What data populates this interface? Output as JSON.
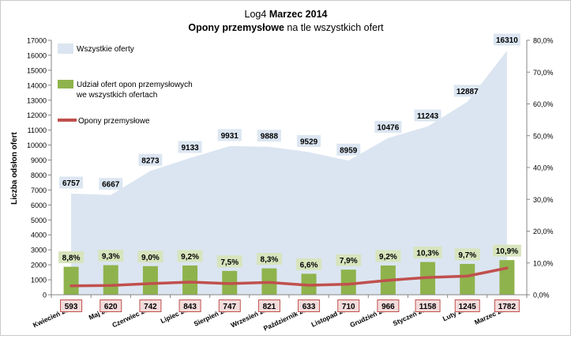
{
  "chart_data": {
    "type": "area",
    "title": {
      "prefix": "Log4",
      "period": "Marzec 2014",
      "subtitle_bold": "Opony przemysłowe",
      "subtitle_rest": "na tle wszystkich ofert"
    },
    "ylabel": "Liczba odsłon ofert",
    "ylim": [
      0,
      17000
    ],
    "y2lim": [
      0,
      80
    ],
    "y_ticks": [
      "0",
      "1000",
      "2000",
      "3000",
      "4000",
      "5000",
      "6000",
      "7000",
      "8000",
      "9000",
      "10000",
      "11000",
      "12000",
      "13000",
      "14000",
      "15000",
      "16000",
      "17000"
    ],
    "y2_ticks": [
      "0,0%",
      "10,0%",
      "20,0%",
      "30,0%",
      "40,0%",
      "50,0%",
      "60,0%",
      "70,0%",
      "80,0%"
    ],
    "categories": [
      "Kwiecień 2013",
      "Maj 2013",
      "Czerwiec 2013",
      "Lipiec 2013",
      "Sierpień 2013",
      "Wrzesień 2013",
      "Październik 2013",
      "Listopad 2013",
      "Grudzień 2013",
      "Styczeń 2014",
      "Luty 2014",
      "Marzec 2014"
    ],
    "series": [
      {
        "name": "Wszystkie oferty",
        "kind": "area",
        "color": "#dbe5f1",
        "label_bg": "#dce6f2",
        "values": [
          6757,
          6667,
          8273,
          9133,
          9931,
          9888,
          9529,
          8959,
          10476,
          11243,
          12887,
          16310
        ],
        "labels": [
          "6757",
          "6667",
          "8273",
          "9133",
          "9931",
          "9888",
          "9529",
          "8959",
          "10476",
          "11243",
          "12887",
          "16310"
        ]
      },
      {
        "name": "Udział ofert opon przemysłowych we wszystkich ofertach",
        "name_lines": [
          "Udział ofert opon przemysłowych",
          "we wszystkich ofertach"
        ],
        "kind": "bar",
        "axis": "secondary",
        "color": "#8fb34c",
        "label_bg": "#d7e4bd",
        "values": [
          8.8,
          9.3,
          9.0,
          9.2,
          7.5,
          8.3,
          6.6,
          7.9,
          9.2,
          10.3,
          9.7,
          10.9
        ],
        "labels": [
          "8,8%",
          "9,3%",
          "9,0%",
          "9,2%",
          "7,5%",
          "8,3%",
          "6,6%",
          "7,9%",
          "9,2%",
          "10,3%",
          "9,7%",
          "10,9%"
        ]
      },
      {
        "name": "Opony przemysłowe",
        "kind": "line",
        "color": "#c0504d",
        "label_bg": "#f2dcdb",
        "label_border": "#c0504d",
        "values": [
          593,
          620,
          742,
          843,
          747,
          821,
          633,
          710,
          966,
          1158,
          1245,
          1782
        ],
        "labels": [
          "593",
          "620",
          "742",
          "843",
          "747",
          "821",
          "633",
          "710",
          "966",
          "1158",
          "1245",
          "1782"
        ]
      }
    ],
    "legend": "top-left",
    "grid": false
  }
}
